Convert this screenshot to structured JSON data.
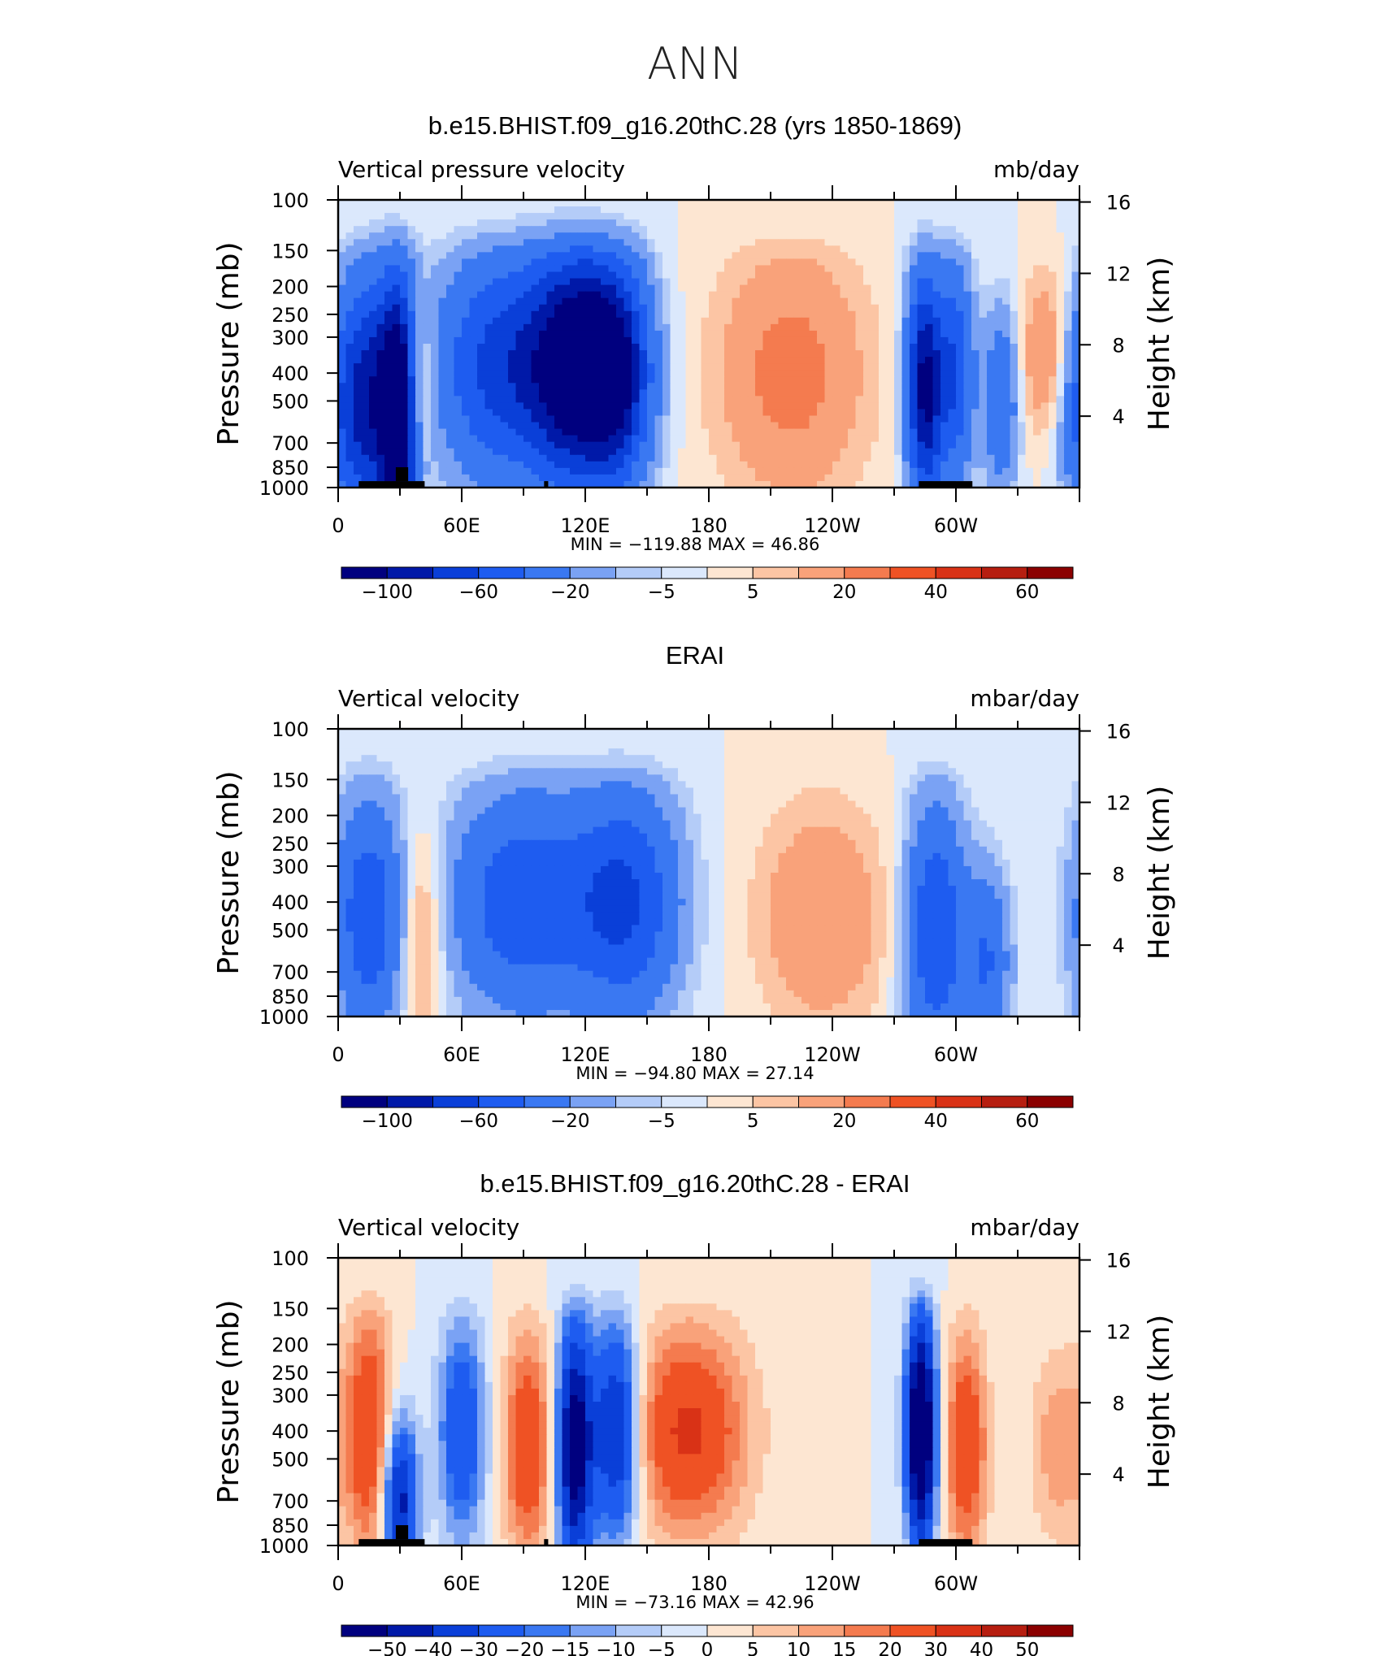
{
  "figure_title": "ANN",
  "colors": {
    "abs_scale": [
      "#00007f",
      "#0019a8",
      "#0a3fd8",
      "#1e5cf0",
      "#3a78f2",
      "#7aa2f4",
      "#b4ccf8",
      "#dbe8fc",
      "#fde6d2",
      "#fcc5a4",
      "#f9a27a",
      "#f47b4f",
      "#ef5224",
      "#d93216",
      "#b61e10",
      "#8b0000"
    ],
    "diff_scale": [
      "#00007f",
      "#0019a8",
      "#0a3fd8",
      "#1e5cf0",
      "#3a78f2",
      "#7aa2f4",
      "#b4ccf8",
      "#dbe8fc",
      "#fde6d2",
      "#fcc5a4",
      "#f9a27a",
      "#f47b4f",
      "#ef5224",
      "#d93216",
      "#b61e10",
      "#8b0000"
    ]
  },
  "chart_data": [
    {
      "type": "heatmap",
      "title": "b.e15.BHIST.f09_g16.20thC.28 (yrs 1850-1869)",
      "left_label": "Vertical pressure velocity",
      "right_label": "mb/day",
      "ylabel": "Pressure (mb)",
      "y2label": "Height (km)",
      "min_max": "MIN = −119.88   MAX =   46.86",
      "colorbar_labels": [
        "−100",
        "−60",
        "−20",
        "−5",
        "5",
        "20",
        "40",
        "60"
      ],
      "min": -119.88,
      "max": 46.86,
      "blobs": [
        {
          "lon": 5,
          "p": 500,
          "w": 10,
          "h": 1.6,
          "v": -55
        },
        {
          "lon": 20,
          "p": 500,
          "w": 10,
          "h": 1.8,
          "v": -70
        },
        {
          "lon": 30,
          "p": 550,
          "w": 6,
          "h": 1.8,
          "v": -110
        },
        {
          "lon": 38,
          "p": 450,
          "w": 5,
          "h": 1.2,
          "v": 40
        },
        {
          "lon": 80,
          "p": 380,
          "w": 22,
          "h": 1.6,
          "v": -70
        },
        {
          "lon": 115,
          "p": 380,
          "w": 15,
          "h": 1.6,
          "v": -110
        },
        {
          "lon": 135,
          "p": 400,
          "w": 12,
          "h": 1.5,
          "v": -95
        },
        {
          "lon": 220,
          "p": 400,
          "w": 25,
          "h": 1.8,
          "v": 25
        },
        {
          "lon": 285,
          "p": 450,
          "w": 6,
          "h": 1.6,
          "v": -110
        },
        {
          "lon": 300,
          "p": 400,
          "w": 6,
          "h": 1.5,
          "v": -60
        },
        {
          "lon": 322,
          "p": 500,
          "w": 6,
          "h": 1.3,
          "v": -40
        },
        {
          "lon": 345,
          "p": 350,
          "w": 10,
          "h": 1.2,
          "v": 22
        }
      ],
      "land": [
        {
          "lon0": 10,
          "lon1": 42,
          "p0": 1000,
          "p1": 950
        },
        {
          "lon0": 28,
          "lon1": 34,
          "p0": 950,
          "p1": 850
        },
        {
          "lon0": 100,
          "lon1": 102,
          "p0": 1000,
          "p1": 950
        },
        {
          "lon0": 282,
          "lon1": 308,
          "p0": 1000,
          "p1": 950
        }
      ]
    },
    {
      "type": "heatmap",
      "title": "ERAI",
      "left_label": "Vertical velocity",
      "right_label": "mbar/day",
      "ylabel": "Pressure (mb)",
      "y2label": "Height (km)",
      "min_max": "MIN = −94.80   MAX =   27.14",
      "colorbar_labels": [
        "−100",
        "−60",
        "−20",
        "−5",
        "5",
        "20",
        "40",
        "60"
      ],
      "min": -94.8,
      "max": 27.14,
      "blobs": [
        {
          "lon": 15,
          "p": 450,
          "w": 12,
          "h": 1.7,
          "v": -55
        },
        {
          "lon": 40,
          "p": 500,
          "w": 8,
          "h": 1.5,
          "v": 22
        },
        {
          "lon": 90,
          "p": 400,
          "w": 25,
          "h": 1.6,
          "v": -55
        },
        {
          "lon": 140,
          "p": 400,
          "w": 18,
          "h": 1.6,
          "v": -60
        },
        {
          "lon": 235,
          "p": 450,
          "w": 22,
          "h": 1.6,
          "v": 20
        },
        {
          "lon": 290,
          "p": 500,
          "w": 10,
          "h": 1.8,
          "v": -60
        },
        {
          "lon": 315,
          "p": 650,
          "w": 8,
          "h": 1.3,
          "v": -40
        }
      ],
      "land": []
    },
    {
      "type": "heatmap",
      "title": "b.e15.BHIST.f09_g16.20thC.28 - ERAI",
      "left_label": "Vertical velocity",
      "right_label": "mbar/day",
      "ylabel": "Pressure (mb)",
      "y2label": "Height (km)",
      "min_max": "MIN = −73.16   MAX =   42.96",
      "colorbar_labels": [
        "−50",
        "−40",
        "−30",
        "−20",
        "−15",
        "−10",
        "−5",
        "0",
        "5",
        "10",
        "15",
        "20",
        "30",
        "40",
        "50"
      ],
      "min": -73.16,
      "max": 42.96,
      "blobs": [
        {
          "lon": 15,
          "p": 400,
          "w": 8,
          "h": 1.8,
          "v": 30
        },
        {
          "lon": 30,
          "p": 700,
          "w": 6,
          "h": 1.2,
          "v": -45
        },
        {
          "lon": 60,
          "p": 400,
          "w": 8,
          "h": 1.6,
          "v": -30
        },
        {
          "lon": 92,
          "p": 450,
          "w": 8,
          "h": 1.6,
          "v": 30
        },
        {
          "lon": 115,
          "p": 450,
          "w": 6,
          "h": 1.8,
          "v": -60
        },
        {
          "lon": 135,
          "p": 400,
          "w": 8,
          "h": 1.6,
          "v": -45
        },
        {
          "lon": 170,
          "p": 400,
          "w": 20,
          "h": 1.5,
          "v": 32
        },
        {
          "lon": 283,
          "p": 400,
          "w": 5,
          "h": 1.7,
          "v": -73
        },
        {
          "lon": 305,
          "p": 450,
          "w": 7,
          "h": 1.6,
          "v": 30
        },
        {
          "lon": 350,
          "p": 450,
          "w": 10,
          "h": 1.4,
          "v": 14
        }
      ],
      "land": [
        {
          "lon0": 10,
          "lon1": 42,
          "p0": 1000,
          "p1": 950
        },
        {
          "lon0": 28,
          "lon1": 34,
          "p0": 950,
          "p1": 850
        },
        {
          "lon0": 100,
          "lon1": 102,
          "p0": 1000,
          "p1": 950
        },
        {
          "lon0": 282,
          "lon1": 308,
          "p0": 1000,
          "p1": 950
        }
      ]
    }
  ],
  "axes": {
    "pressure_ticks": [
      "100",
      "150",
      "200",
      "250",
      "300",
      "400",
      "500",
      "700",
      "850",
      "1000"
    ],
    "height_ticks": [
      "16",
      "12",
      "8",
      "4"
    ],
    "lon_ticks": [
      "0",
      "60E",
      "120E",
      "180",
      "120W",
      "60W"
    ]
  }
}
